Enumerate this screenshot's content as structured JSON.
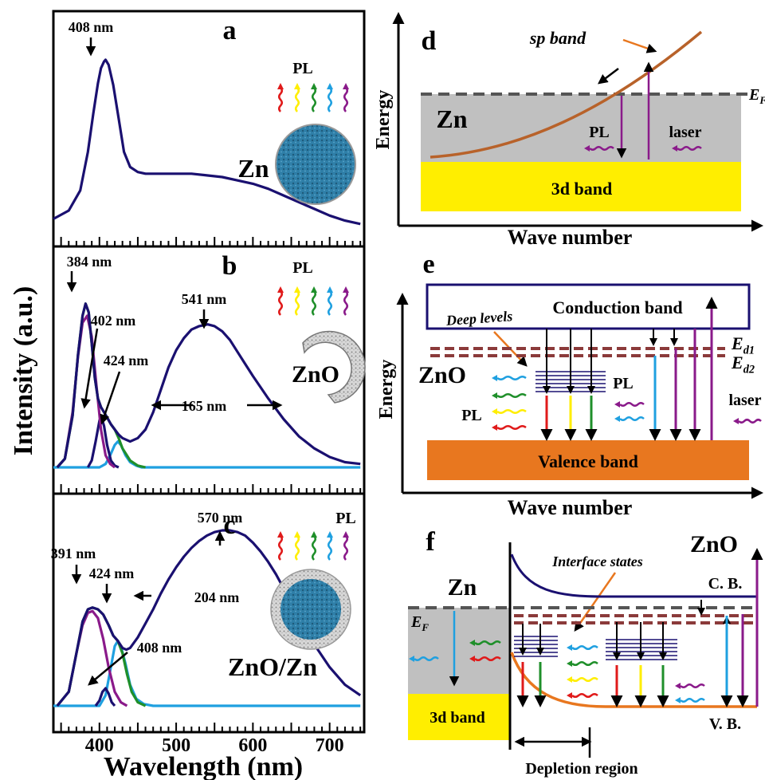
{
  "colors": {
    "navy": "#1a1070",
    "purple": "#8a1a8a",
    "green": "#1f8f2a",
    "lightblue": "#1fa0e0",
    "red": "#e01a1a",
    "yellow": "#ffee00",
    "orange_band": "#e8771f",
    "gray_band": "#c0c0c0",
    "brown_dash": "#8b3a3a",
    "sp_band": "#b8622a"
  },
  "chart_data": [
    {
      "type": "line",
      "panel": "a",
      "panel_label": "a",
      "series": [
        {
          "name": "",
          "color": "#1a1070",
          "x": [
            340,
            360,
            375,
            385,
            392,
            398,
            402,
            406,
            408,
            412,
            418,
            425,
            432,
            440,
            450,
            460,
            480,
            500,
            520,
            540,
            560,
            580,
            600,
            620,
            640,
            660,
            680,
            700,
            720,
            740
          ],
          "y": [
            0.05,
            0.1,
            0.22,
            0.45,
            0.68,
            0.86,
            0.95,
            0.99,
            1.0,
            0.97,
            0.85,
            0.65,
            0.45,
            0.36,
            0.33,
            0.32,
            0.32,
            0.32,
            0.32,
            0.31,
            0.3,
            0.28,
            0.26,
            0.23,
            0.19,
            0.15,
            0.11,
            0.07,
            0.04,
            0.02
          ]
        }
      ],
      "annotations": [
        {
          "x": 408,
          "text": "408 nm"
        }
      ],
      "labels": {
        "pl": "PL",
        "material": "Zn"
      }
    },
    {
      "type": "line",
      "panel": "b",
      "panel_label": "b",
      "series": [
        {
          "name": "",
          "color": "#1a1070",
          "x": [
            345,
            355,
            365,
            372,
            378,
            382,
            386,
            390,
            394,
            398,
            402,
            406,
            410,
            415,
            420,
            425,
            430,
            440,
            450,
            460,
            470,
            480,
            490,
            500,
            510,
            520,
            530,
            541,
            550,
            560,
            570,
            580,
            590,
            600,
            620,
            640,
            660,
            680,
            700,
            720,
            740
          ],
          "y": [
            0.0,
            0.05,
            0.3,
            0.65,
            0.88,
            0.95,
            0.9,
            0.72,
            0.52,
            0.4,
            0.35,
            0.32,
            0.29,
            0.25,
            0.22,
            0.19,
            0.17,
            0.15,
            0.17,
            0.22,
            0.32,
            0.45,
            0.58,
            0.68,
            0.75,
            0.8,
            0.82,
            0.83,
            0.82,
            0.79,
            0.74,
            0.67,
            0.6,
            0.53,
            0.4,
            0.28,
            0.18,
            0.11,
            0.06,
            0.03,
            0.02
          ]
        },
        {
          "name": "",
          "color": "#1f8f2a",
          "x": [
            345,
            355,
            365,
            372,
            378,
            382,
            386,
            390,
            394,
            398,
            402,
            406,
            410,
            415,
            420,
            425,
            430,
            440,
            450,
            460
          ],
          "y": [
            0.0,
            0.05,
            0.3,
            0.65,
            0.88,
            0.95,
            0.9,
            0.72,
            0.52,
            0.4,
            0.35,
            0.32,
            0.29,
            0.25,
            0.22,
            0.17,
            0.11,
            0.04,
            0.01,
            0.0
          ]
        },
        {
          "name": "",
          "color": "#8a1a8a",
          "x": [
            345,
            355,
            365,
            372,
            378,
            384,
            390,
            396,
            402,
            408,
            414,
            420
          ],
          "y": [
            0.0,
            0.05,
            0.32,
            0.64,
            0.84,
            0.88,
            0.76,
            0.48,
            0.22,
            0.07,
            0.02,
            0.0
          ]
        },
        {
          "name": "",
          "color": "#1a1070",
          "x": [
            385,
            390,
            395,
            400,
            402,
            406,
            410,
            415,
            420,
            425
          ],
          "y": [
            0.0,
            0.04,
            0.15,
            0.27,
            0.3,
            0.24,
            0.13,
            0.04,
            0.01,
            0.0
          ]
        },
        {
          "name": "",
          "color": "#1fa0e0",
          "x": [
            340,
            400,
            408,
            414,
            420,
            424,
            428,
            434,
            440,
            448,
            455,
            740
          ],
          "y": [
            0.0,
            0.0,
            0.02,
            0.07,
            0.13,
            0.15,
            0.13,
            0.07,
            0.03,
            0.01,
            0.0,
            0.0
          ]
        }
      ],
      "annotations": [
        {
          "x": 384,
          "text": "384 nm"
        },
        {
          "x": 402,
          "text": "402 nm"
        },
        {
          "x": 424,
          "text": "424 nm"
        },
        {
          "x": 541,
          "text": "541 nm"
        },
        {
          "x": 541,
          "text": "165 nm"
        }
      ],
      "labels": {
        "pl": "PL",
        "material": "ZnO"
      }
    },
    {
      "type": "line",
      "panel": "c",
      "panel_label": "c",
      "series": [
        {
          "name": "",
          "color": "#1a1070",
          "x": [
            345,
            360,
            370,
            378,
            385,
            391,
            398,
            405,
            412,
            418,
            424,
            430,
            435,
            440,
            450,
            460,
            470,
            480,
            490,
            500,
            510,
            520,
            530,
            540,
            550,
            560,
            570,
            580,
            590,
            600,
            610,
            620,
            630,
            640,
            650,
            660,
            680,
            700,
            720,
            740
          ],
          "y": [
            0.0,
            0.08,
            0.3,
            0.48,
            0.55,
            0.56,
            0.55,
            0.52,
            0.46,
            0.4,
            0.37,
            0.33,
            0.32,
            0.33,
            0.39,
            0.47,
            0.55,
            0.64,
            0.72,
            0.79,
            0.85,
            0.9,
            0.94,
            0.97,
            0.99,
            1.0,
            1.0,
            0.99,
            0.97,
            0.93,
            0.88,
            0.82,
            0.75,
            0.67,
            0.58,
            0.5,
            0.35,
            0.22,
            0.12,
            0.06
          ]
        },
        {
          "name": "",
          "color": "#1f8f2a",
          "x": [
            345,
            360,
            370,
            378,
            385,
            391,
            398,
            405,
            412,
            418,
            424,
            430,
            436,
            442,
            450,
            460
          ],
          "y": [
            0.0,
            0.08,
            0.3,
            0.48,
            0.55,
            0.56,
            0.55,
            0.52,
            0.46,
            0.4,
            0.37,
            0.3,
            0.18,
            0.08,
            0.02,
            0.0
          ]
        },
        {
          "name": "",
          "color": "#8a1a8a",
          "x": [
            345,
            360,
            370,
            378,
            385,
            391,
            398,
            405,
            412,
            420,
            428,
            436
          ],
          "y": [
            0.0,
            0.08,
            0.3,
            0.46,
            0.53,
            0.54,
            0.5,
            0.38,
            0.22,
            0.08,
            0.02,
            0.0
          ]
        },
        {
          "name": "",
          "color": "#1a1070",
          "x": [
            395,
            400,
            404,
            408,
            412,
            416,
            420
          ],
          "y": [
            0.0,
            0.03,
            0.08,
            0.1,
            0.07,
            0.02,
            0.0
          ]
        },
        {
          "name": "",
          "color": "#1fa0e0",
          "x": [
            340,
            400,
            408,
            414,
            420,
            424,
            428,
            434,
            440,
            448,
            458,
            470,
            740
          ],
          "y": [
            0.0,
            0.0,
            0.06,
            0.2,
            0.34,
            0.37,
            0.34,
            0.24,
            0.12,
            0.04,
            0.01,
            0.0,
            0.0
          ]
        }
      ],
      "annotations": [
        {
          "x": 391,
          "text": "391 nm"
        },
        {
          "x": 424,
          "text": "424 nm"
        },
        {
          "x": 408,
          "text": "408 nm"
        },
        {
          "x": 570,
          "text": "570 nm"
        },
        {
          "x": 570,
          "text": "204 nm"
        }
      ],
      "labels": {
        "pl": "PL",
        "material": "ZnO/Zn"
      },
      "xlim": [
        340,
        745
      ],
      "xticks": [
        400,
        500,
        600,
        700
      ]
    }
  ],
  "axes": {
    "ylabel": "Intensity (a.u.)",
    "xlabel": "Wavelength (nm)"
  },
  "diagrams": {
    "d": {
      "label": "d",
      "ylabel": "Energy",
      "xlabel": "Wave number",
      "sp_band": "sp band",
      "ef": "E",
      "ef_sub": "F",
      "material": "Zn",
      "pl": "PL",
      "laser": "laser",
      "band_3d": "3d band"
    },
    "e": {
      "label": "e",
      "ylabel": "Energy",
      "xlabel": "Wave number",
      "deep_levels": "Deep levels",
      "conduction": "Conduction band",
      "ed1": "E",
      "ed1_sub": "d1",
      "ed2": "E",
      "ed2_sub": "d2",
      "material": "ZnO",
      "pl_left": "PL",
      "pl_right": "PL",
      "laser": "laser",
      "valence": "Valence band"
    },
    "f": {
      "label": "f",
      "interface": "Interface states",
      "zn": "Zn",
      "zno": "ZnO",
      "cb": "C. B.",
      "vb": "V. B.",
      "ef": "E",
      "ef_sub": "F",
      "band_3d": "3d band",
      "depletion": "Depletion region"
    }
  }
}
